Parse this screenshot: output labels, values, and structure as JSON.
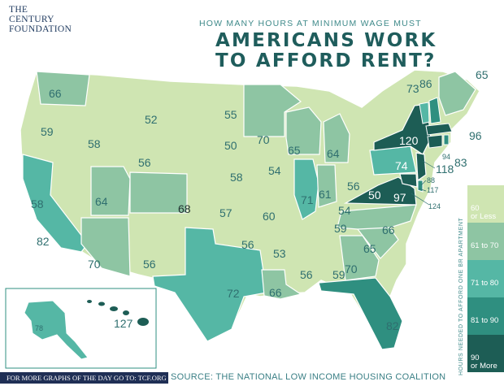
{
  "logo_line1": "THE",
  "logo_line2": "CENTURY",
  "logo_line3": "FOUNDATION",
  "subtitle": "HOW MANY HOURS AT MINIMUM WAGE MUST",
  "title_line1": "AMERICANS WORK",
  "title_line2": "TO AFFORD RENT?",
  "legend_title": "HOURS NEEDED TO AFFORD ONE BR APARTMENT",
  "legend": [
    {
      "line1": "60",
      "line2": "or Less",
      "color": "#cfe5b2"
    },
    {
      "line1": "61 to 70",
      "line2": "",
      "color": "#8ec5a3"
    },
    {
      "line1": "71 to 80",
      "line2": "",
      "color": "#55b7a5"
    },
    {
      "line1": "81 to 90",
      "line2": "",
      "color": "#2f8f80"
    },
    {
      "line1": "90",
      "line2": "or More",
      "color": "#1d5d55"
    }
  ],
  "footer_link": "FOR MORE GRAPHS OF THE DAY GO TO: TCF.ORG",
  "source": "SOURCE: THE NATIONAL LOW INCOME HOUSING COALITION",
  "states": {
    "WA": "66",
    "OR": "59",
    "CA": "82",
    "NV": "58",
    "ID": "58",
    "MT": "52",
    "WY": "56",
    "UT": "64",
    "AZ": "70",
    "CO": "68",
    "NM": "56",
    "ND": "55",
    "SD": "50",
    "NE": "58",
    "KS": "57",
    "OK": "56",
    "TX": "72",
    "MN": "70",
    "IA": "54",
    "MO": "60",
    "AR": "53",
    "LA": "66",
    "WI": "65",
    "IL": "71",
    "MS": "56",
    "AL": "59",
    "MI": "64",
    "IN": "61",
    "KY": "54",
    "TN": "59",
    "OH": "56",
    "GA": "70",
    "FL": "82",
    "SC": "65",
    "NC": "66",
    "VA": "97",
    "WV": "50",
    "PA": "74",
    "NY": "120",
    "VT": "73",
    "NH": "86",
    "ME": "65",
    "MA": "96",
    "RI": "83",
    "CT": "94",
    "NJ": "118",
    "DE": "88",
    "MD": "117",
    "DC": "124",
    "AK": "78",
    "HI": "127"
  }
}
